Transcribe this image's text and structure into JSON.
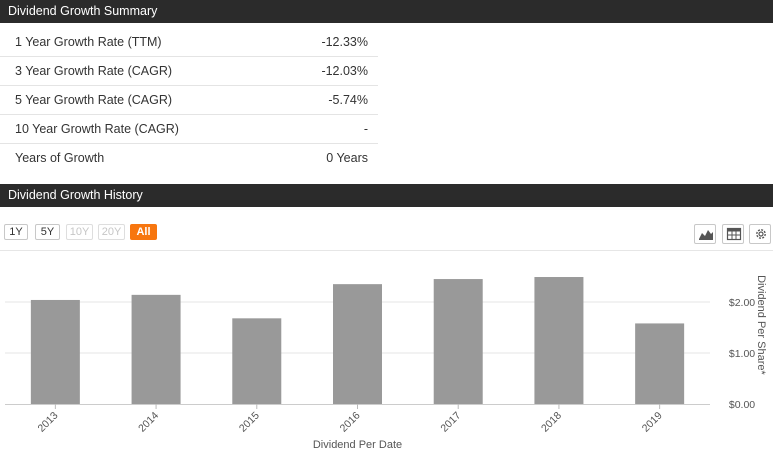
{
  "summary": {
    "title": "Dividend Growth Summary",
    "rows": [
      {
        "label": "1 Year Growth Rate (TTM)",
        "value": "-12.33%"
      },
      {
        "label": "3 Year Growth Rate (CAGR)",
        "value": "-12.03%"
      },
      {
        "label": "5 Year Growth Rate (CAGR)",
        "value": "-5.74%"
      },
      {
        "label": "10 Year Growth Rate (CAGR)",
        "value": "-"
      },
      {
        "label": "Years of Growth",
        "value": "0 Years"
      }
    ]
  },
  "history": {
    "title": "Dividend Growth History",
    "range_buttons": [
      {
        "label": "1Y",
        "state": "normal"
      },
      {
        "label": "5Y",
        "state": "normal"
      },
      {
        "label": "10Y",
        "state": "disabled"
      },
      {
        "label": "20Y",
        "state": "disabled"
      },
      {
        "label": "All",
        "state": "active"
      }
    ],
    "tools": [
      "area-chart-icon",
      "table-icon",
      "gear-icon"
    ]
  },
  "chart_data": {
    "type": "bar",
    "categories": [
      "2013",
      "2014",
      "2015",
      "2016",
      "2017",
      "2018",
      "2019"
    ],
    "values": [
      2.04,
      2.14,
      1.68,
      2.35,
      2.45,
      2.49,
      1.58
    ],
    "xlabel": "Dividend Per Date",
    "ylabel": "Dividend Per Share*",
    "ylim": [
      0,
      3
    ],
    "yticks": [
      0,
      1,
      2
    ],
    "ytick_labels": [
      "$0.00",
      "$1.00",
      "$2.00"
    ],
    "bar_color": "#999999",
    "grid": true
  }
}
